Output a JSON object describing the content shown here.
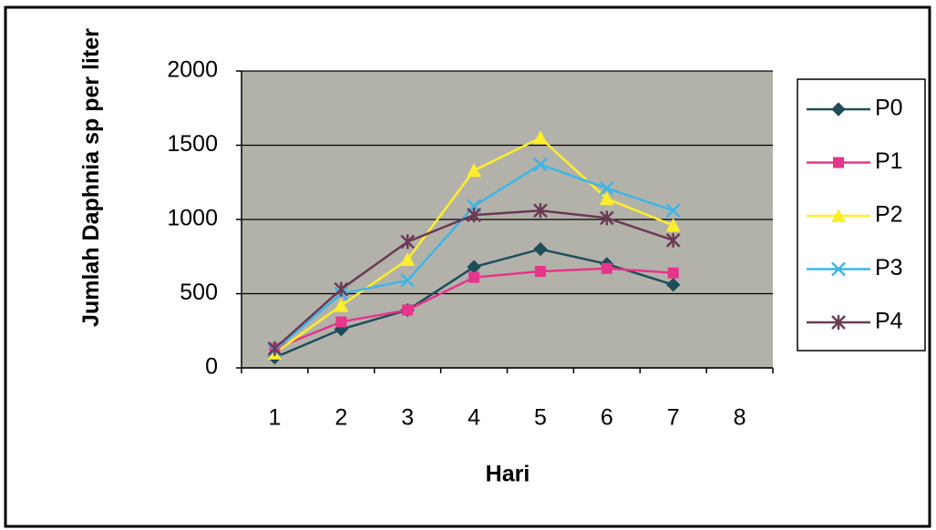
{
  "chart_data": {
    "type": "line",
    "x_label": "Hari",
    "y_label": "Jumlah Daphnia sp per liter",
    "categories": [
      "1",
      "2",
      "3",
      "4",
      "5",
      "6",
      "7",
      "8"
    ],
    "series": [
      {
        "name": "P0",
        "color": "#1f4e5a",
        "marker": "diamond",
        "values": [
          70,
          260,
          390,
          680,
          800,
          700,
          560,
          null
        ]
      },
      {
        "name": "P1",
        "color": "#e6358a",
        "marker": "square",
        "values": [
          130,
          310,
          390,
          610,
          650,
          670,
          640,
          null
        ]
      },
      {
        "name": "P2",
        "color": "#ffee2a",
        "marker": "triangle",
        "values": [
          100,
          420,
          730,
          1330,
          1550,
          1140,
          960,
          null
        ]
      },
      {
        "name": "P3",
        "color": "#3fb5e8",
        "marker": "x",
        "values": [
          120,
          500,
          590,
          1090,
          1370,
          1210,
          1060,
          null
        ]
      },
      {
        "name": "P4",
        "color": "#6b3a55",
        "marker": "star",
        "values": [
          130,
          530,
          850,
          1030,
          1060,
          1010,
          860,
          null
        ]
      }
    ],
    "ylim": [
      0,
      2000
    ],
    "yticks": [
      0,
      500,
      1000,
      1500,
      2000
    ],
    "grid": true,
    "legend": "right"
  }
}
